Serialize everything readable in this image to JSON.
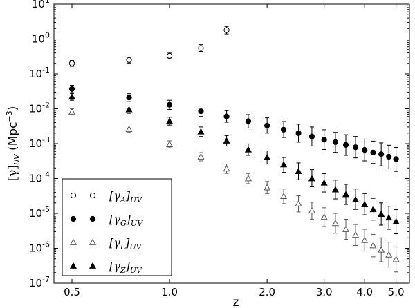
{
  "chart_data": {
    "type": "scatter",
    "title": "",
    "xlabel": "z",
    "ylabel": "[γ]_UV (Mpc⁻³)",
    "ylabel_main": "[γ]",
    "ylabel_sub": "UV",
    "ylabel_unit": " (Mpc",
    "ylabel_exp": "−3",
    "ylabel_close": ")",
    "xscale": "log",
    "yscale": "log",
    "xlim": [
      0.44,
      5.5
    ],
    "ylim": [
      1e-07,
      10
    ],
    "grid": false,
    "legend_position": "bottom-left",
    "x_ticks": [
      {
        "value": 0.5,
        "label": "0.5"
      },
      {
        "value": 1.0,
        "label": "1.0"
      },
      {
        "value": 2.0,
        "label": "2.0"
      },
      {
        "value": 3.0,
        "label": "3.0"
      },
      {
        "value": 4.0,
        "label": "4.0"
      },
      {
        "value": 5.0,
        "label": "5.0"
      }
    ],
    "y_ticks": [
      {
        "value": 10.0,
        "base": "10",
        "exp": "1"
      },
      {
        "value": 1.0,
        "base": "10",
        "exp": "0"
      },
      {
        "value": 0.1,
        "base": "10",
        "exp": "-1"
      },
      {
        "value": 0.01,
        "base": "10",
        "exp": "-2"
      },
      {
        "value": 0.001,
        "base": "10",
        "exp": "-3"
      },
      {
        "value": 0.0001,
        "base": "10",
        "exp": "-4"
      },
      {
        "value": 1e-05,
        "base": "10",
        "exp": "-5"
      },
      {
        "value": 1e-06,
        "base": "10",
        "exp": "-6"
      },
      {
        "value": 1e-07,
        "base": "10",
        "exp": "-7"
      }
    ],
    "series": [
      {
        "name": "[γA]UV",
        "label_main": "[γ",
        "label_sub": "A",
        "label_end": "]",
        "label_post": "UV",
        "marker": "circle",
        "filled": false,
        "color": "#000000",
        "points": [
          {
            "x": 0.5,
            "y": 0.2,
            "lo": 0.165,
            "hi": 0.242
          },
          {
            "x": 0.75,
            "y": 0.25,
            "lo": 0.205,
            "hi": 0.305
          },
          {
            "x": 1.0,
            "y": 0.33,
            "lo": 0.27,
            "hi": 0.41
          },
          {
            "x": 1.25,
            "y": 0.55,
            "lo": 0.44,
            "hi": 0.69
          },
          {
            "x": 1.5,
            "y": 1.8,
            "lo": 1.4,
            "hi": 2.3
          }
        ]
      },
      {
        "name": "[γG]UV",
        "label_main": "[γ",
        "label_sub": "G",
        "label_end": "]",
        "label_post": "UV",
        "marker": "circle",
        "filled": true,
        "color": "#000000",
        "points": [
          {
            "x": 0.5,
            "y": 0.037,
            "lo": 0.029,
            "hi": 0.047
          },
          {
            "x": 0.75,
            "y": 0.021,
            "lo": 0.016,
            "hi": 0.027
          },
          {
            "x": 1.0,
            "y": 0.013,
            "lo": 0.0095,
            "hi": 0.0175
          },
          {
            "x": 1.25,
            "y": 0.0085,
            "lo": 0.006,
            "hi": 0.012
          },
          {
            "x": 1.5,
            "y": 0.006,
            "lo": 0.0041,
            "hi": 0.0088
          },
          {
            "x": 1.75,
            "y": 0.0044,
            "lo": 0.0028,
            "hi": 0.0068
          },
          {
            "x": 2.0,
            "y": 0.0033,
            "lo": 0.002,
            "hi": 0.0055
          },
          {
            "x": 2.25,
            "y": 0.0025,
            "lo": 0.0015,
            "hi": 0.0043
          },
          {
            "x": 2.5,
            "y": 0.002,
            "lo": 0.0011,
            "hi": 0.0036
          },
          {
            "x": 2.75,
            "y": 0.0016,
            "lo": 0.00085,
            "hi": 0.003
          },
          {
            "x": 3.0,
            "y": 0.0013,
            "lo": 0.00068,
            "hi": 0.0025
          },
          {
            "x": 3.25,
            "y": 0.0011,
            "lo": 0.00056,
            "hi": 0.0021
          },
          {
            "x": 3.5,
            "y": 0.00092,
            "lo": 0.00046,
            "hi": 0.0018
          },
          {
            "x": 3.75,
            "y": 0.00079,
            "lo": 0.00039,
            "hi": 0.0016
          },
          {
            "x": 4.0,
            "y": 0.00066,
            "lo": 0.00032,
            "hi": 0.00135
          },
          {
            "x": 4.25,
            "y": 0.00056,
            "lo": 0.00027,
            "hi": 0.00118
          },
          {
            "x": 4.5,
            "y": 0.0005,
            "lo": 0.00023,
            "hi": 0.00105
          },
          {
            "x": 4.75,
            "y": 0.00042,
            "lo": 0.00019,
            "hi": 0.0009
          },
          {
            "x": 5.0,
            "y": 0.00036,
            "lo": 0.00016,
            "hi": 0.00078
          }
        ]
      },
      {
        "name": "[γL]UV",
        "label_main": "[γ",
        "label_sub": "L",
        "label_end": "]",
        "label_post": "UV",
        "marker": "triangle",
        "filled": false,
        "color": "#555555",
        "points": [
          {
            "x": 0.5,
            "y": 0.0082,
            "lo": 0.0066,
            "hi": 0.0101
          },
          {
            "x": 0.75,
            "y": 0.0026,
            "lo": 0.0021,
            "hi": 0.0032
          },
          {
            "x": 1.0,
            "y": 0.00095,
            "lo": 0.00076,
            "hi": 0.0012
          },
          {
            "x": 1.25,
            "y": 0.00042,
            "lo": 0.00032,
            "hi": 0.00055
          },
          {
            "x": 1.5,
            "y": 0.00019,
            "lo": 0.00014,
            "hi": 0.00026
          },
          {
            "x": 1.75,
            "y": 0.0001,
            "lo": 7.1e-05,
            "hi": 0.00014
          },
          {
            "x": 2.0,
            "y": 5.5e-05,
            "lo": 3.7e-05,
            "hi": 8.2e-05
          },
          {
            "x": 2.25,
            "y": 3.1e-05,
            "lo": 1.9e-05,
            "hi": 5e-05
          },
          {
            "x": 2.5,
            "y": 1.9e-05,
            "lo": 1.1e-05,
            "hi": 3.2e-05
          },
          {
            "x": 2.75,
            "y": 1.2e-05,
            "lo": 6.8e-06,
            "hi": 2.1e-05
          },
          {
            "x": 3.0,
            "y": 7.8e-06,
            "lo": 4.2e-06,
            "hi": 1.45e-05
          },
          {
            "x": 3.25,
            "y": 5.2e-06,
            "lo": 2.7e-06,
            "hi": 1e-05
          },
          {
            "x": 3.5,
            "y": 3.5e-06,
            "lo": 1.8e-06,
            "hi": 6.8e-06
          },
          {
            "x": 3.75,
            "y": 2.4e-06,
            "lo": 1.2e-06,
            "hi": 4.8e-06
          },
          {
            "x": 4.0,
            "y": 1.7e-06,
            "lo": 8.3e-07,
            "hi": 3.5e-06
          },
          {
            "x": 4.25,
            "y": 1.2e-06,
            "lo": 5.7e-07,
            "hi": 2.5e-06
          },
          {
            "x": 4.5,
            "y": 9e-07,
            "lo": 4.1e-07,
            "hi": 2e-06
          },
          {
            "x": 4.75,
            "y": 6.5e-07,
            "lo": 2.9e-07,
            "hi": 1.5e-06
          },
          {
            "x": 5.0,
            "y": 4.8e-07,
            "lo": 2.1e-07,
            "hi": 1.1e-06
          }
        ]
      },
      {
        "name": "[γZ]UV",
        "label_main": "[γ",
        "label_sub": "Z",
        "label_end": "]",
        "label_post": "UV",
        "marker": "triangle",
        "filled": true,
        "color": "#000000",
        "points": [
          {
            "x": 0.5,
            "y": 0.022,
            "lo": 0.0175,
            "hi": 0.0275
          },
          {
            "x": 0.75,
            "y": 0.0095,
            "lo": 0.0074,
            "hi": 0.012
          },
          {
            "x": 1.0,
            "y": 0.0044,
            "lo": 0.0034,
            "hi": 0.0057
          },
          {
            "x": 1.25,
            "y": 0.0022,
            "lo": 0.0016,
            "hi": 0.003
          },
          {
            "x": 1.5,
            "y": 0.0012,
            "lo": 0.00085,
            "hi": 0.0017
          },
          {
            "x": 1.75,
            "y": 0.00067,
            "lo": 0.00046,
            "hi": 0.00098
          },
          {
            "x": 2.0,
            "y": 0.0004,
            "lo": 0.00026,
            "hi": 0.00062
          },
          {
            "x": 2.25,
            "y": 0.00025,
            "lo": 0.00015,
            "hi": 0.0004
          },
          {
            "x": 2.5,
            "y": 0.00016,
            "lo": 9.2e-05,
            "hi": 0.00028
          },
          {
            "x": 2.75,
            "y": 0.0001,
            "lo": 5.8e-05,
            "hi": 0.00018
          },
          {
            "x": 3.0,
            "y": 7.5e-05,
            "lo": 4.1e-05,
            "hi": 0.000138
          },
          {
            "x": 3.25,
            "y": 4.8e-05,
            "lo": 2.6e-05,
            "hi": 9e-05
          },
          {
            "x": 3.5,
            "y": 3.5e-05,
            "lo": 1.8e-05,
            "hi": 6.8e-05
          },
          {
            "x": 3.75,
            "y": 2.5e-05,
            "lo": 1.3e-05,
            "hi": 5e-05
          },
          {
            "x": 4.0,
            "y": 1.8e-05,
            "lo": 9.1e-06,
            "hi": 3.7e-05
          },
          {
            "x": 4.25,
            "y": 1.3e-05,
            "lo": 6.4e-06,
            "hi": 2.7e-05
          },
          {
            "x": 4.5,
            "y": 9.5e-06,
            "lo": 4.6e-06,
            "hi": 2e-05
          },
          {
            "x": 4.75,
            "y": 7.5e-06,
            "lo": 3.5e-06,
            "hi": 1.6e-05
          },
          {
            "x": 5.0,
            "y": 5.8e-06,
            "lo": 2.6e-06,
            "hi": 1.28e-05
          }
        ]
      }
    ]
  }
}
